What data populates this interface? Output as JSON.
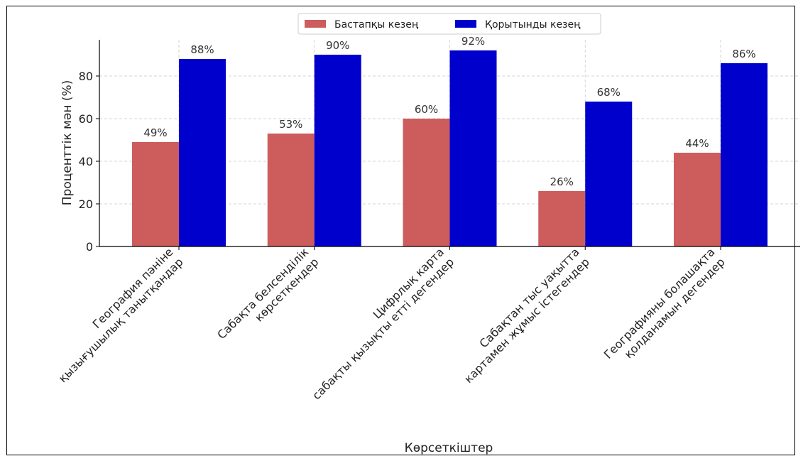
{
  "chart_data": {
    "type": "bar",
    "title": "",
    "xlabel": "Көрсеткіштер",
    "ylabel": "Проценттік мән (%)",
    "ylim": [
      0,
      97
    ],
    "yticks": [
      0,
      20,
      40,
      60,
      80
    ],
    "grid": true,
    "legend_position": "top-center",
    "categories": [
      [
        "География пәніне",
        "қызығушылық танытқандар"
      ],
      [
        "Сабақта белсенділік",
        "көрсеткендер"
      ],
      [
        "Цифрлық карта",
        "сабақты қызықты етті дегендер"
      ],
      [
        "Сабақтан тыс уақытта",
        "картамен жұмыс істегендер"
      ],
      [
        "Географияны болашақта",
        "қолданамын дегендер"
      ]
    ],
    "series": [
      {
        "name": "Бастапқы кезең",
        "color": "#cd5c5c",
        "values": [
          49,
          53,
          60,
          26,
          44
        ],
        "labels": [
          "49%",
          "53%",
          "60%",
          "26%",
          "44%"
        ]
      },
      {
        "name": "Қорытынды кезең",
        "color": "#0000cd",
        "values": [
          88,
          90,
          92,
          68,
          86
        ],
        "labels": [
          "88%",
          "90%",
          "92%",
          "68%",
          "86%"
        ]
      }
    ]
  }
}
